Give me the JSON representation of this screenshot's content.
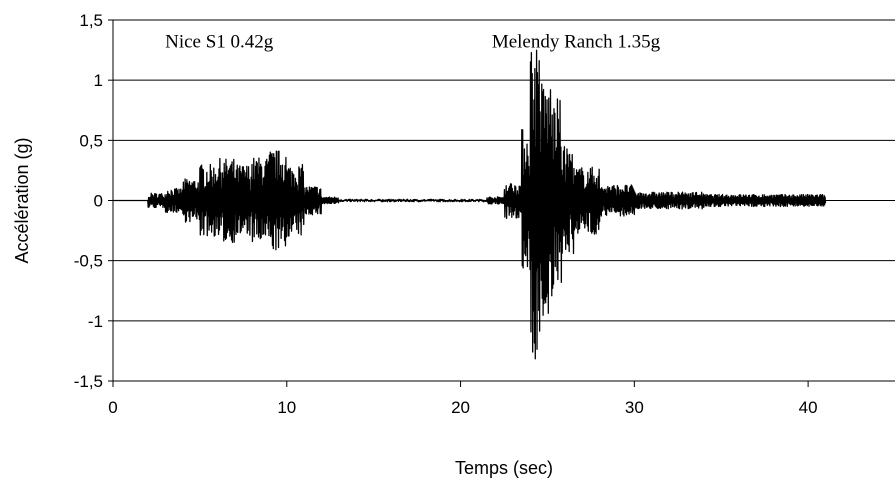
{
  "chart_data": {
    "type": "line",
    "title": "",
    "xlabel": "Temps (sec)",
    "ylabel": "Accélération (g)",
    "xlim": [
      0,
      45
    ],
    "ylim": [
      -1.5,
      1.5
    ],
    "x_ticks": [
      0,
      10,
      20,
      30,
      40
    ],
    "x_tick_labels": [
      "0",
      "10",
      "20",
      "30",
      "40"
    ],
    "y_ticks": [
      1.5,
      1,
      0.5,
      0,
      -0.5,
      -1,
      -1.5
    ],
    "y_tick_labels": [
      "1,5",
      "1",
      "0,5",
      "0",
      "-0,5",
      "-1",
      "-1,5"
    ],
    "grid": "horizontal",
    "legend": "none",
    "line_color": "#000000",
    "annotations": [
      {
        "text": "Nice S1 0.42g",
        "x": 3.0,
        "y": 1.27
      },
      {
        "text": "Melendy Ranch 1.35g",
        "x": 21.8,
        "y": 1.27
      }
    ],
    "series": [
      {
        "segments": [
          {
            "t_start": 0.0,
            "t_end": 2.0,
            "amplitude": 0.0
          },
          {
            "t_start": 2.0,
            "t_end": 3.0,
            "amplitude": 0.06
          },
          {
            "t_start": 3.0,
            "t_end": 4.0,
            "amplitude": 0.1
          },
          {
            "t_start": 4.0,
            "t_end": 5.0,
            "amplitude": 0.18
          },
          {
            "t_start": 5.0,
            "t_end": 6.0,
            "amplitude": 0.3
          },
          {
            "t_start": 6.0,
            "t_end": 7.0,
            "amplitude": 0.35
          },
          {
            "t_start": 7.0,
            "t_end": 8.0,
            "amplitude": 0.3
          },
          {
            "t_start": 8.0,
            "t_end": 9.0,
            "amplitude": 0.36
          },
          {
            "t_start": 9.0,
            "t_end": 10.0,
            "amplitude": 0.42
          },
          {
            "t_start": 10.0,
            "t_end": 11.0,
            "amplitude": 0.3
          },
          {
            "t_start": 11.0,
            "t_end": 12.0,
            "amplitude": 0.12
          },
          {
            "t_start": 12.0,
            "t_end": 13.0,
            "amplitude": 0.03
          },
          {
            "t_start": 13.0,
            "t_end": 21.5,
            "amplitude": 0.01
          },
          {
            "t_start": 21.5,
            "t_end": 22.5,
            "amplitude": 0.03
          },
          {
            "t_start": 22.5,
            "t_end": 23.5,
            "amplitude": 0.15
          },
          {
            "t_start": 23.5,
            "t_end": 24.0,
            "amplitude": 0.6
          },
          {
            "t_start": 24.0,
            "t_end": 24.6,
            "amplitude": 1.35
          },
          {
            "t_start": 24.6,
            "t_end": 25.2,
            "amplitude": 1.0
          },
          {
            "t_start": 25.2,
            "t_end": 25.8,
            "amplitude": 0.85
          },
          {
            "t_start": 25.8,
            "t_end": 26.5,
            "amplitude": 0.45
          },
          {
            "t_start": 26.5,
            "t_end": 28.0,
            "amplitude": 0.28
          },
          {
            "t_start": 28.0,
            "t_end": 30.0,
            "amplitude": 0.13
          },
          {
            "t_start": 30.0,
            "t_end": 34.0,
            "amplitude": 0.07
          },
          {
            "t_start": 34.0,
            "t_end": 41.0,
            "amplitude": 0.05
          },
          {
            "t_start": 41.0,
            "t_end": 41.0,
            "amplitude": 0.0
          }
        ],
        "peak_annotations": {
          "nice_s1": {
            "t": 9.3,
            "peak_g": 0.42
          },
          "melendy_ranch": {
            "t": 24.5,
            "peak_g": 1.35
          }
        }
      }
    ]
  }
}
